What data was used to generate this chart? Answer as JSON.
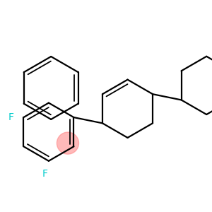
{
  "background_color": "#ffffff",
  "bond_color": "#000000",
  "bond_width": 1.6,
  "F_color_top": "#00cccc",
  "F_color_bottom": "#00cccc",
  "highlight_color": "#ff8080",
  "highlight_alpha": 0.55,
  "font_size_F": 9,
  "figsize": [
    3.0,
    3.0
  ],
  "dpi": 100,
  "xlim": [
    20,
    290
  ],
  "ylim": [
    20,
    290
  ]
}
